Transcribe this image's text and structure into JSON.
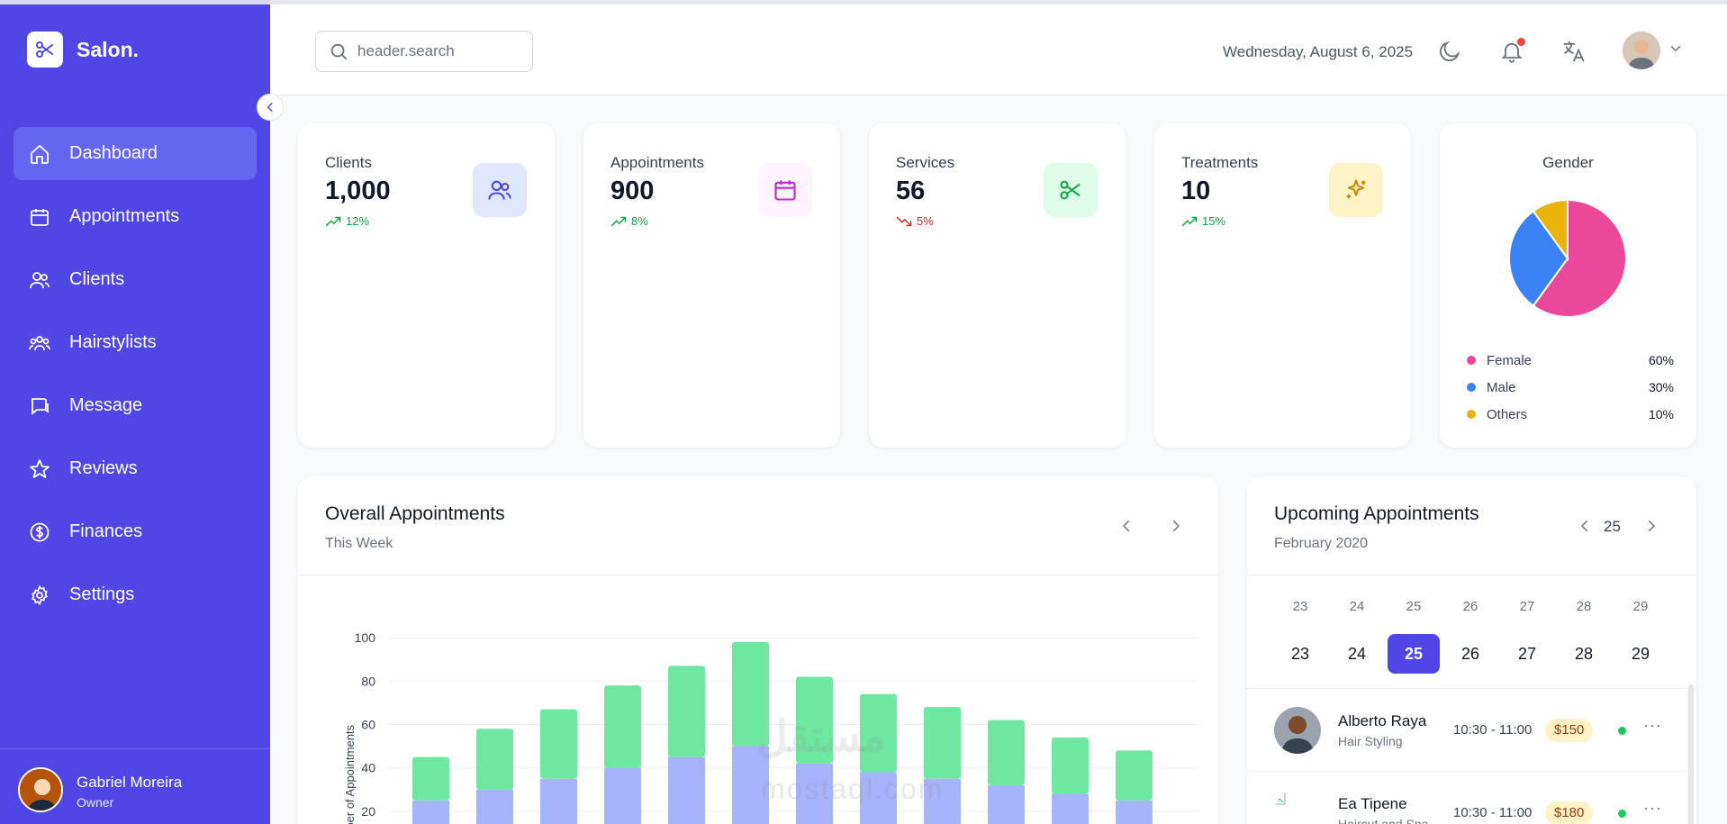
{
  "brand": {
    "name": "Salon."
  },
  "sidebar": {
    "items": [
      {
        "label": "Dashboard",
        "icon": "home-icon"
      },
      {
        "label": "Appointments",
        "icon": "calendar-icon"
      },
      {
        "label": "Clients",
        "icon": "users-icon"
      },
      {
        "label": "Hairstylists",
        "icon": "team-icon"
      },
      {
        "label": "Message",
        "icon": "message-icon"
      },
      {
        "label": "Reviews",
        "icon": "star-icon"
      },
      {
        "label": "Finances",
        "icon": "dollar-icon"
      },
      {
        "label": "Settings",
        "icon": "gear-icon"
      }
    ],
    "user": {
      "name": "Gabriel Moreira",
      "role": "Owner"
    }
  },
  "header": {
    "search_placeholder": "header.search",
    "date": "Wednesday, August 6, 2025"
  },
  "stats": [
    {
      "label": "Clients",
      "value": "1,000",
      "trend": "12%",
      "direction": "up",
      "icon": "users-icon",
      "color": "#4f46e5",
      "bg": "#e0e7ff"
    },
    {
      "label": "Appointments",
      "value": "900",
      "trend": "8%",
      "direction": "up",
      "icon": "calendar-icon",
      "color": "#c026d3",
      "bg": "#fdf4ff"
    },
    {
      "label": "Services",
      "value": "56",
      "trend": "5%",
      "direction": "down",
      "icon": "scissors-icon",
      "color": "#16a34a",
      "bg": "#dcfce7"
    },
    {
      "label": "Treatments",
      "value": "10",
      "trend": "15%",
      "direction": "up",
      "icon": "sparkles-icon",
      "color": "#ca8a04",
      "bg": "#fef3c7"
    }
  ],
  "gender": {
    "title": "Gender",
    "items": [
      {
        "label": "Female",
        "pct": "60%",
        "value": 60,
        "color": "#ec4899"
      },
      {
        "label": "Male",
        "pct": "30%",
        "value": 30,
        "color": "#3b82f6"
      },
      {
        "label": "Others",
        "pct": "10%",
        "value": 10,
        "color": "#eab308"
      }
    ]
  },
  "overall": {
    "title": "Overall Appointments",
    "subtitle": "This Week"
  },
  "chart_data": {
    "type": "bar",
    "stacked": true,
    "ylabel": "Number of Appointments",
    "ylim": [
      0,
      110
    ],
    "yticks": [
      20,
      40,
      60,
      80,
      100
    ],
    "series": [
      {
        "values": [
          25,
          30,
          35,
          40,
          45,
          50,
          42,
          38,
          35,
          32,
          28,
          25
        ],
        "color": "#a5b4fc"
      },
      {
        "values": [
          20,
          28,
          32,
          38,
          42,
          48,
          40,
          36,
          33,
          30,
          26,
          23
        ],
        "color": "#6ee7a0"
      }
    ]
  },
  "upcoming": {
    "title": "Upcoming Appointments",
    "subtitle": "February 2020",
    "current_day": "25",
    "week_labels": [
      "23",
      "24",
      "25",
      "26",
      "27",
      "28",
      "29"
    ],
    "days": [
      "23",
      "24",
      "25",
      "26",
      "27",
      "28",
      "29"
    ],
    "selected_index": 2,
    "list": [
      {
        "name": "Alberto Raya",
        "service": "Hair Styling",
        "time": "10:30 - 11:00",
        "price": "$150"
      },
      {
        "name": "Ea Tipene",
        "service": "Haircut and Spa",
        "time": "10:30 - 11:00",
        "price": "$180"
      }
    ]
  },
  "watermark": {
    "arabic": "مستقل",
    "latin": "mostaql.com"
  }
}
